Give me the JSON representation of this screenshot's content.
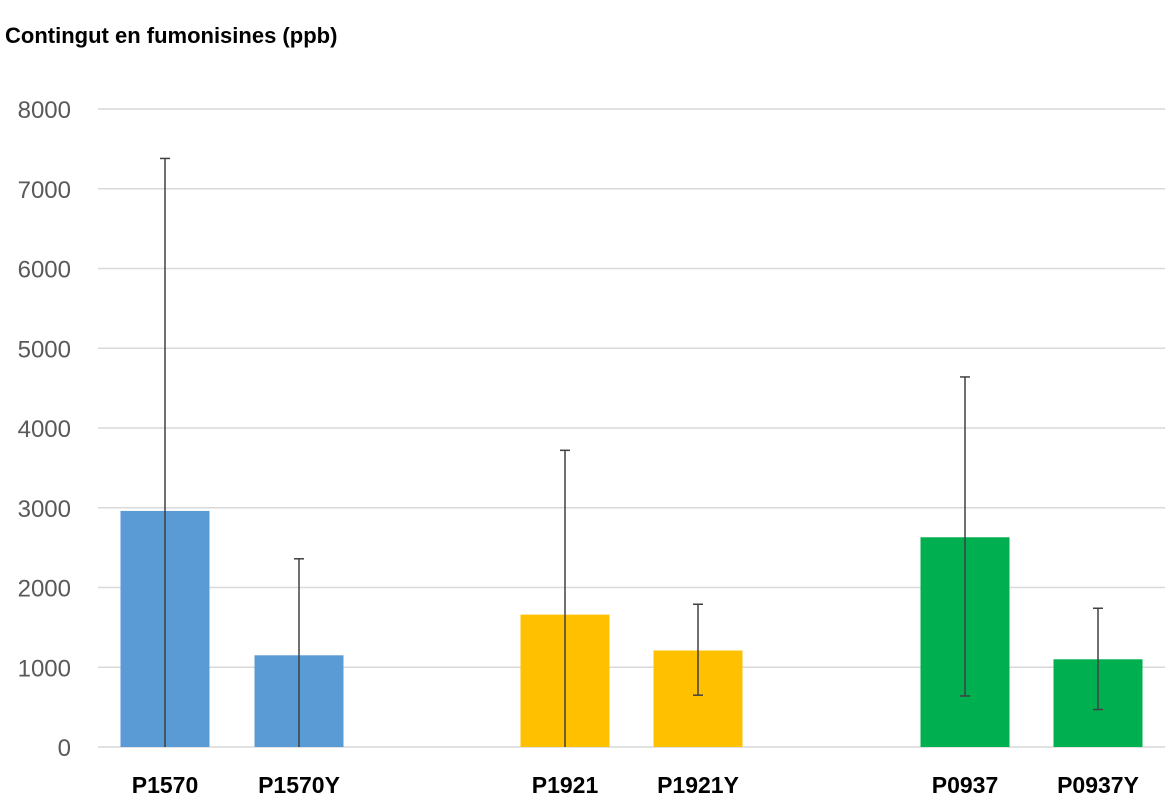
{
  "chart_data": {
    "type": "bar",
    "title": "Contingut en fumonisines (ppb)",
    "xlabel": "",
    "ylabel": "",
    "ylim": [
      0,
      8000
    ],
    "yticks": [
      0,
      1000,
      2000,
      3000,
      4000,
      5000,
      6000,
      7000,
      8000
    ],
    "grid": true,
    "categories": [
      "P1570",
      "P1570Y",
      "P1921",
      "P1921Y",
      "P0937",
      "P0937Y"
    ],
    "values": [
      2960,
      1150,
      1660,
      1210,
      2630,
      1100
    ],
    "error_low": [
      0,
      0,
      0,
      650,
      640,
      470
    ],
    "error_high": [
      7380,
      2360,
      3720,
      1790,
      4640,
      1740
    ],
    "colors": [
      "#5b9bd5",
      "#5b9bd5",
      "#ffc000",
      "#ffc000",
      "#00b050",
      "#00b050"
    ]
  }
}
